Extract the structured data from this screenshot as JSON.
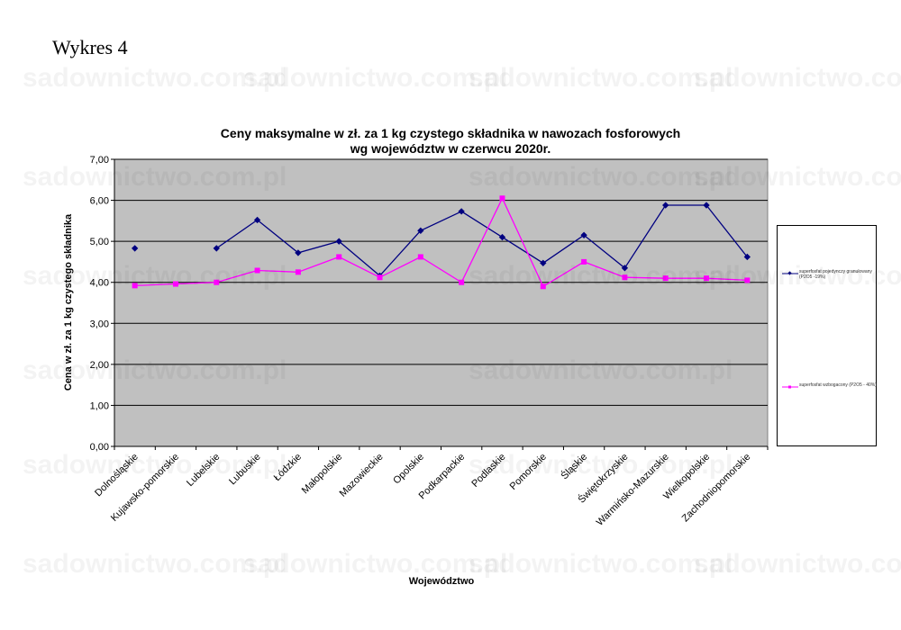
{
  "page": {
    "heading": "Wykres 4"
  },
  "watermark": "sadownictwo.com.pl",
  "chart_data": {
    "type": "line",
    "title_line1": "Ceny maksymalne  w zł. za 1 kg czystego składnika w nawozach fosforowych",
    "title_line2": "wg województw w czerwcu 2020r.",
    "xlabel": "Województwo",
    "ylabel": "Cena w zł. za 1 kg czystego składnika",
    "ylim": [
      0,
      7
    ],
    "yticks": [
      "0,00",
      "1,00",
      "2,00",
      "3,00",
      "4,00",
      "5,00",
      "6,00",
      "7,00"
    ],
    "grid": true,
    "legend_position": "right",
    "plot_background": "#c0c0c0",
    "categories": [
      "Dolnośląskie",
      "Kujawsko-pomorskie",
      "Lubelskie",
      "Lubuskie",
      "Łódzkie",
      "Małopolskie",
      "Mazowieckie",
      "Opolskie",
      "Podkarpackie",
      "Podlaskie",
      "Pomorskie",
      "Śląskie",
      "Świętokrzyskie",
      "Warmińsko-Mazurskie",
      "Wielkopolskie",
      "Zachodniopomorskie"
    ],
    "series": [
      {
        "name": "superfosfat pojedynczy granulowany (P2O5 -19%)",
        "color": "#000080",
        "marker": "diamond",
        "values": [
          4.83,
          null,
          4.83,
          5.52,
          4.72,
          5.0,
          4.16,
          5.26,
          5.73,
          5.1,
          4.47,
          5.15,
          4.35,
          5.88,
          5.88,
          4.62
        ]
      },
      {
        "name": "superfosfat wzbogacony (P2O5 - 40%)",
        "color": "#ff00ff",
        "marker": "square",
        "values": [
          3.92,
          3.96,
          4.0,
          4.29,
          4.25,
          4.62,
          4.12,
          4.62,
          4.0,
          6.05,
          3.9,
          4.5,
          4.12,
          4.1,
          4.1,
          4.05
        ]
      }
    ]
  }
}
